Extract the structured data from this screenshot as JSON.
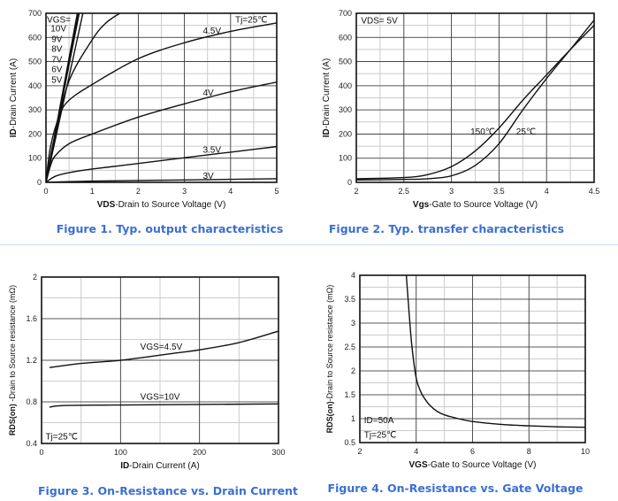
{
  "colors": {
    "caption": "#3b6fd1",
    "curve": "#111111",
    "major_grid": "#333333",
    "minor_grid": "#cccccc"
  },
  "chart_data": [
    {
      "type": "line",
      "caption": "Figure 1. Typ. output characteristics",
      "xlabel_bold": "VDS",
      "xlabel": "-Drain to Source Voltage (V)",
      "ylabel_bold": "ID",
      "ylabel": "-Drain Current  (A)",
      "xlim": [
        0,
        5
      ],
      "ylim": [
        0,
        700
      ],
      "xticks": [
        0,
        1,
        2,
        3,
        4,
        5
      ],
      "yticks": [
        0,
        100,
        200,
        300,
        400,
        500,
        600,
        700
      ],
      "xminor": 0.5,
      "yminor": 50,
      "grid": true,
      "series": [
        {
          "name": "10V",
          "x": [
            0,
            0.68
          ],
          "y": [
            0,
            700
          ]
        },
        {
          "name": "9V",
          "x": [
            0,
            0.69
          ],
          "y": [
            0,
            700
          ]
        },
        {
          "name": "8V",
          "x": [
            0,
            0.7
          ],
          "y": [
            0,
            700
          ]
        },
        {
          "name": "7V",
          "x": [
            0,
            0.72
          ],
          "y": [
            0,
            700
          ]
        },
        {
          "name": "6V",
          "x": [
            0,
            0.8
          ],
          "y": [
            0,
            700
          ]
        },
        {
          "name": "5V",
          "x": [
            0,
            0.1,
            0.2,
            0.5,
            1,
            1.3,
            1.6
          ],
          "y": [
            0,
            110,
            200,
            420,
            590,
            660,
            700
          ]
        },
        {
          "name": "4.5V",
          "x": [
            0,
            0.1,
            0.3,
            0.5,
            1,
            2,
            3,
            4,
            5
          ],
          "y": [
            0,
            150,
            280,
            340,
            405,
            512,
            578,
            625,
            660
          ]
        },
        {
          "name": "4V",
          "x": [
            0,
            0.1,
            0.2,
            0.5,
            1,
            2,
            3,
            4,
            5
          ],
          "y": [
            0,
            70,
            110,
            160,
            200,
            270,
            325,
            375,
            415
          ]
        },
        {
          "name": "3.5V",
          "x": [
            0,
            0.2,
            0.5,
            1,
            2,
            3,
            4,
            5
          ],
          "y": [
            0,
            25,
            40,
            55,
            78,
            102,
            125,
            148
          ]
        },
        {
          "name": "3V",
          "x": [
            0,
            1,
            3,
            5
          ],
          "y": [
            0,
            5,
            10,
            15
          ]
        }
      ],
      "annotations": [
        {
          "text": "VGS=",
          "x": 0.02,
          "y": 675,
          "anchor": "start"
        },
        {
          "text": "10V",
          "x": 0.1,
          "y": 638,
          "anchor": "start"
        },
        {
          "text": "9V",
          "x": 0.12,
          "y": 594,
          "anchor": "start"
        },
        {
          "text": "8V",
          "x": 0.12,
          "y": 553,
          "anchor": "start"
        },
        {
          "text": "7V",
          "x": 0.12,
          "y": 509,
          "anchor": "start"
        },
        {
          "text": "6V",
          "x": 0.12,
          "y": 469,
          "anchor": "start"
        },
        {
          "text": "5V",
          "x": 0.12,
          "y": 425,
          "anchor": "start"
        },
        {
          "text": "Tj=25℃",
          "x": 4.8,
          "y": 675,
          "anchor": "end"
        },
        {
          "text": "4.5V",
          "x": 3.4,
          "y": 628,
          "anchor": "start"
        },
        {
          "text": "4V",
          "x": 3.4,
          "y": 372,
          "anchor": "start"
        },
        {
          "text": "3.5V",
          "x": 3.4,
          "y": 135,
          "anchor": "start"
        },
        {
          "text": "3V",
          "x": 3.4,
          "y": 28,
          "anchor": "start"
        }
      ]
    },
    {
      "type": "line",
      "caption": "Figure 2. Typ. transfer characteristics",
      "xlabel_bold": "Vgs",
      "xlabel": "-Gate to Source Voltage (V)",
      "ylabel_bold": "ID",
      "ylabel": "-Drain Current  (A)",
      "xlim": [
        2,
        4.5
      ],
      "ylim": [
        0,
        700
      ],
      "xticks": [
        2,
        2.5,
        3,
        3.5,
        4,
        4.5
      ],
      "yticks": [
        0,
        100,
        200,
        300,
        400,
        500,
        600,
        700
      ],
      "xminor": 0.25,
      "yminor": 50,
      "grid": true,
      "series": [
        {
          "name": "150℃",
          "x": [
            2,
            2.5,
            2.75,
            3,
            3.25,
            3.5,
            3.75,
            4,
            4.25,
            4.5
          ],
          "y": [
            15,
            20,
            32,
            65,
            130,
            225,
            340,
            445,
            550,
            650
          ]
        },
        {
          "name": "25℃",
          "x": [
            2,
            2.5,
            2.75,
            3,
            3.25,
            3.5,
            3.75,
            4,
            4.25,
            4.5
          ],
          "y": [
            10,
            12,
            15,
            27,
            70,
            160,
            300,
            430,
            550,
            672
          ]
        }
      ],
      "annotations": [
        {
          "text": "VDS= 5V",
          "x": 2.05,
          "y": 670,
          "anchor": "start"
        },
        {
          "text": "150℃",
          "x": 3.2,
          "y": 210,
          "anchor": "start"
        },
        {
          "text": "25℃",
          "x": 3.68,
          "y": 210,
          "anchor": "start"
        }
      ]
    },
    {
      "type": "line",
      "caption": "Figure 3. On-Resistance vs. Drain Current",
      "xlabel_bold": "ID",
      "xlabel": "-Drain Current (A)",
      "ylabel_bold": "RDS(on)",
      "ylabel": " -Drain to Source resistance (mΩ)",
      "xlim": [
        0,
        300
      ],
      "ylim": [
        0.4,
        2
      ],
      "xticks": [
        0,
        100,
        200,
        300
      ],
      "yticks": [
        0.4,
        0.8,
        1.2,
        1.6,
        2
      ],
      "xminor": 50,
      "yminor": 0.2,
      "grid": true,
      "series": [
        {
          "name": "VGS=4.5V",
          "x": [
            10,
            50,
            100,
            170,
            200,
            250,
            300
          ],
          "y": [
            1.13,
            1.17,
            1.2,
            1.27,
            1.3,
            1.37,
            1.48
          ]
        },
        {
          "name": "VGS=10V",
          "x": [
            10,
            30,
            100,
            300
          ],
          "y": [
            0.75,
            0.765,
            0.77,
            0.78
          ]
        }
      ],
      "annotations": [
        {
          "text": "VGS=4.5V",
          "x": 125,
          "y": 1.33,
          "anchor": "start"
        },
        {
          "text": "VGS=10V",
          "x": 125,
          "y": 0.85,
          "anchor": "start"
        },
        {
          "text": "Tj=25℃",
          "x": 5,
          "y": 0.47,
          "anchor": "start"
        }
      ]
    },
    {
      "type": "line",
      "caption": "Figure 4. On-Resistance vs. Gate Voltage",
      "xlabel_bold": "VGS",
      "xlabel": "-Gate to Source Voltage (V)",
      "ylabel_bold": "RDS(on)",
      "ylabel": "-Drain to Source resistance (mΩ)",
      "xlim": [
        2,
        10
      ],
      "ylim": [
        0.5,
        4
      ],
      "xticks": [
        2,
        4,
        6,
        8,
        10
      ],
      "yticks": [
        0.5,
        1,
        1.5,
        2,
        2.5,
        3,
        3.5,
        4
      ],
      "xminor": 1,
      "yminor": 0.25,
      "grid": true,
      "series": [
        {
          "name": "ID=50A",
          "x": [
            3.65,
            3.75,
            3.85,
            4,
            4.15,
            4.3,
            4.5,
            4.75,
            5,
            5.5,
            6,
            7,
            8,
            9,
            10
          ],
          "y": [
            4,
            3.2,
            2.5,
            1.85,
            1.58,
            1.42,
            1.27,
            1.15,
            1.08,
            1,
            0.94,
            0.88,
            0.85,
            0.83,
            0.82
          ]
        }
      ],
      "annotations": [
        {
          "text": "ID=50A",
          "x": 2.15,
          "y": 0.97,
          "anchor": "start"
        },
        {
          "text": "Tj=25℃",
          "x": 2.15,
          "y": 0.67,
          "anchor": "start"
        }
      ]
    }
  ]
}
